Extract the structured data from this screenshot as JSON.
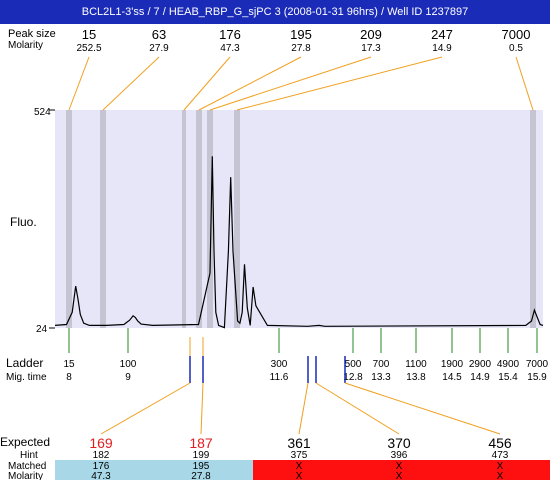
{
  "title": "BCL2L1-3'ss / 7 / HEAB_RBP_G_sjPC 3 (2008-01-31 96hrs) / Well ID 1237897",
  "labels": {
    "top_size": "Peak size",
    "top_molarity": "Molarity",
    "fluo": "Fluo.",
    "ladder": "Ladder",
    "mig_time": "Mig. time",
    "expected": "Expected",
    "hint": "Hint",
    "matched": "Matched",
    "molarity": "Molarity"
  },
  "colors": {
    "title_bar": "#1a2bb8",
    "plot_bg": "#e6e6f8",
    "band": "#c4c4d2",
    "leader_orange": "#f0a020",
    "ladder_green": "#208a20",
    "marker_blue": "#1a2bb8",
    "expected_red": "#e02020",
    "matched_blue": "#a8d8e8",
    "unmatched_red": "#ff1010"
  },
  "peaks": [
    {
      "size": "15",
      "molarity": "252.5"
    },
    {
      "size": "63",
      "molarity": "27.9"
    },
    {
      "size": "176",
      "molarity": "47.3"
    },
    {
      "size": "195",
      "molarity": "27.8"
    },
    {
      "size": "209",
      "molarity": "17.3"
    },
    {
      "size": "247",
      "molarity": "14.9"
    },
    {
      "size": "7000",
      "molarity": "0.5"
    }
  ],
  "ladder": [
    {
      "size": "15",
      "time": "8"
    },
    {
      "size": "100",
      "time": "9"
    },
    {
      "size": "300",
      "time": "11.6"
    },
    {
      "size": "500",
      "time": "12.8"
    },
    {
      "size": "700",
      "time": "13.3"
    },
    {
      "size": "1100",
      "time": "13.8"
    },
    {
      "size": "1900",
      "time": "14.5"
    },
    {
      "size": "2900",
      "time": "14.9"
    },
    {
      "size": "4900",
      "time": "15.4"
    },
    {
      "size": "7000",
      "time": "15.9"
    }
  ],
  "expected": [
    {
      "expected": "169",
      "hint": "182",
      "matched": "176",
      "molarity": "47.3",
      "status": "matched",
      "highlight": true
    },
    {
      "expected": "187",
      "hint": "199",
      "matched": "195",
      "molarity": "27.8",
      "status": "matched",
      "highlight": true
    },
    {
      "expected": "361",
      "hint": "375",
      "matched": "X",
      "molarity": "X",
      "status": "unmatched",
      "highlight": false
    },
    {
      "expected": "370",
      "hint": "396",
      "matched": "X",
      "molarity": "X",
      "status": "unmatched",
      "highlight": false
    },
    {
      "expected": "456",
      "hint": "473",
      "matched": "X",
      "molarity": "X",
      "status": "unmatched",
      "highlight": false
    }
  ],
  "chart_data": {
    "type": "line",
    "title": "BCL2L1-3'ss / 7 / HEAB_RBP_G_sjPC 3 (2008-01-31 96hrs) / Well ID 1237897",
    "xlabel": "Mig. time",
    "ylabel": "Fluo.",
    "ylim": [
      24,
      524
    ],
    "ytick_labels": [
      "524",
      "24"
    ],
    "xlim": [
      7.6,
      16.1
    ],
    "peak_sizes": [
      "15",
      "63",
      "176",
      "195",
      "209",
      "247",
      "7000"
    ],
    "series": [
      {
        "x": [
          7.6,
          7.8,
          7.9,
          7.96,
          8.0,
          8.04,
          8.1,
          8.2,
          8.5,
          8.8,
          8.9,
          8.96,
          9.0,
          9.04,
          9.1,
          9.3,
          10.1,
          10.3,
          10.34,
          10.37,
          10.4,
          10.45,
          10.55,
          10.62,
          10.66,
          10.7,
          10.74,
          10.78,
          10.82,
          10.86,
          10.9,
          10.95,
          11.0,
          11.05,
          11.1,
          11.3,
          12.0,
          12.2,
          12.3,
          15.8,
          15.9,
          15.95,
          16.0,
          16.05,
          16.1
        ],
        "y": [
          30,
          32,
          60,
          120,
          90,
          55,
          35,
          30,
          30,
          32,
          42,
          52,
          48,
          40,
          33,
          30,
          32,
          150,
          418,
          200,
          60,
          30,
          25,
          200,
          370,
          200,
          120,
          40,
          35,
          60,
          170,
          70,
          30,
          118,
          75,
          30,
          28,
          30,
          28,
          30,
          40,
          65,
          48,
          32,
          30
        ]
      }
    ]
  }
}
